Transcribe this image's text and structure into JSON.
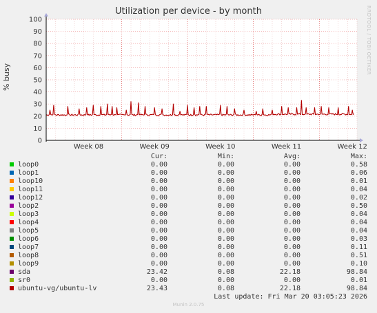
{
  "title": "Utilization per device - by month",
  "side_text": "RRDTOOL / TOBI OETIKER",
  "footer": {
    "last_update": "Last update: Fri Mar 20 03:05:23 2026",
    "version": "Munin 2.0.75"
  },
  "legend": {
    "headers": [
      "Cur:",
      "Min:",
      "Avg:",
      "Max:"
    ],
    "rows": [
      {
        "name": "loop0",
        "color": "#00cc00",
        "cur": "0.00",
        "min": "0.00",
        "avg": "0.00",
        "max": "0.58"
      },
      {
        "name": "loop1",
        "color": "#0066b3",
        "cur": "0.00",
        "min": "0.00",
        "avg": "0.00",
        "max": "0.06"
      },
      {
        "name": "loop10",
        "color": "#ff8000",
        "cur": "0.00",
        "min": "0.00",
        "avg": "0.00",
        "max": "0.01"
      },
      {
        "name": "loop11",
        "color": "#ffcc00",
        "cur": "0.00",
        "min": "0.00",
        "avg": "0.00",
        "max": "0.04"
      },
      {
        "name": "loop12",
        "color": "#330099",
        "cur": "0.00",
        "min": "0.00",
        "avg": "0.00",
        "max": "0.02"
      },
      {
        "name": "loop2",
        "color": "#990099",
        "cur": "0.00",
        "min": "0.00",
        "avg": "0.00",
        "max": "0.50"
      },
      {
        "name": "loop3",
        "color": "#ccff00",
        "cur": "0.00",
        "min": "0.00",
        "avg": "0.00",
        "max": "0.04"
      },
      {
        "name": "loop4",
        "color": "#ff0000",
        "cur": "0.00",
        "min": "0.00",
        "avg": "0.00",
        "max": "0.04"
      },
      {
        "name": "loop5",
        "color": "#808080",
        "cur": "0.00",
        "min": "0.00",
        "avg": "0.00",
        "max": "0.04"
      },
      {
        "name": "loop6",
        "color": "#008f00",
        "cur": "0.00",
        "min": "0.00",
        "avg": "0.00",
        "max": "0.03"
      },
      {
        "name": "loop7",
        "color": "#00487d",
        "cur": "0.00",
        "min": "0.00",
        "avg": "0.00",
        "max": "0.11"
      },
      {
        "name": "loop8",
        "color": "#b35a00",
        "cur": "0.00",
        "min": "0.00",
        "avg": "0.00",
        "max": "0.51"
      },
      {
        "name": "loop9",
        "color": "#b38f00",
        "cur": "0.00",
        "min": "0.00",
        "avg": "0.00",
        "max": "0.10"
      },
      {
        "name": "sda",
        "color": "#6b006b",
        "cur": "23.42",
        "min": "0.08",
        "avg": "22.18",
        "max": "98.84"
      },
      {
        "name": "sr0",
        "color": "#8fb300",
        "cur": "0.00",
        "min": "0.00",
        "avg": "0.00",
        "max": "0.01"
      },
      {
        "name": "ubuntu-vg/ubuntu-lv",
        "color": "#b30000",
        "cur": "23.43",
        "min": "0.08",
        "avg": "22.18",
        "max": "98.84"
      }
    ]
  },
  "chart_data": {
    "type": "line",
    "title": "Utilization per device - by month",
    "ylabel": "% busy",
    "ylim": [
      0,
      100
    ],
    "yticks": [
      0,
      10,
      20,
      30,
      40,
      50,
      60,
      70,
      80,
      90,
      100
    ],
    "xlim": [
      0,
      33
    ],
    "xticks": [
      {
        "label": "Week 08",
        "x": 4.5
      },
      {
        "label": "Week 09",
        "x": 11.5
      },
      {
        "label": "Week 10",
        "x": 18.5
      },
      {
        "label": "Week 11",
        "x": 25.5
      },
      {
        "label": "Week 12",
        "x": 32.5
      }
    ],
    "day_separators": [
      8,
      15,
      22,
      29
    ],
    "grid": true,
    "series": [
      {
        "name": "ubuntu-vg/ubuntu-lv",
        "color": "#b30000",
        "baseline": 21,
        "spikes": [
          {
            "x": 0.4,
            "y": 25
          },
          {
            "x": 0.8,
            "y": 29
          },
          {
            "x": 2.3,
            "y": 28
          },
          {
            "x": 3.5,
            "y": 26
          },
          {
            "x": 4.3,
            "y": 27
          },
          {
            "x": 5.0,
            "y": 29
          },
          {
            "x": 5.8,
            "y": 28
          },
          {
            "x": 6.5,
            "y": 30
          },
          {
            "x": 7.0,
            "y": 28
          },
          {
            "x": 7.5,
            "y": 27
          },
          {
            "x": 8.5,
            "y": 25
          },
          {
            "x": 9.0,
            "y": 32
          },
          {
            "x": 9.8,
            "y": 31
          },
          {
            "x": 10.5,
            "y": 28
          },
          {
            "x": 11.5,
            "y": 27
          },
          {
            "x": 12.3,
            "y": 26
          },
          {
            "x": 13.5,
            "y": 30
          },
          {
            "x": 14.2,
            "y": 24
          },
          {
            "x": 15.0,
            "y": 29
          },
          {
            "x": 15.7,
            "y": 27
          },
          {
            "x": 16.3,
            "y": 28
          },
          {
            "x": 17.0,
            "y": 28
          },
          {
            "x": 18.5,
            "y": 29
          },
          {
            "x": 19.2,
            "y": 28
          },
          {
            "x": 20.0,
            "y": 26
          },
          {
            "x": 21.0,
            "y": 25
          },
          {
            "x": 22.3,
            "y": 24
          },
          {
            "x": 23.0,
            "y": 26
          },
          {
            "x": 24.0,
            "y": 25
          },
          {
            "x": 25.0,
            "y": 28
          },
          {
            "x": 25.7,
            "y": 27
          },
          {
            "x": 26.6,
            "y": 27
          },
          {
            "x": 27.1,
            "y": 33
          },
          {
            "x": 27.6,
            "y": 27
          },
          {
            "x": 28.5,
            "y": 27
          },
          {
            "x": 29.2,
            "y": 28
          },
          {
            "x": 30.0,
            "y": 27
          },
          {
            "x": 31.0,
            "y": 27
          },
          {
            "x": 32.1,
            "y": 28
          },
          {
            "x": 32.5,
            "y": 25
          }
        ]
      }
    ]
  }
}
